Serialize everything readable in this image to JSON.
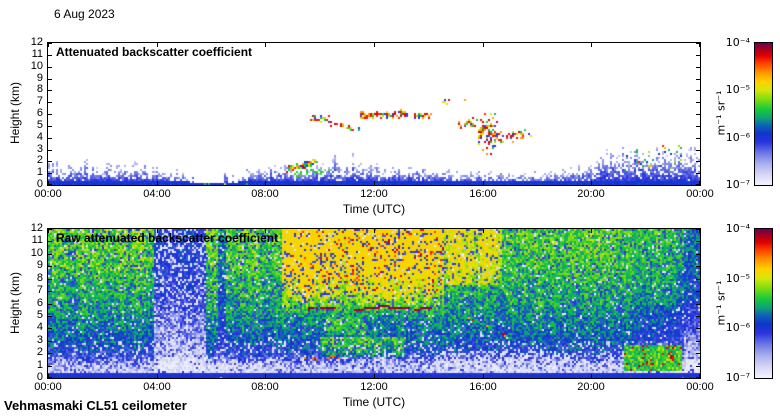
{
  "figure": {
    "date_label": "6 Aug 2023",
    "footer_label": "Vehmasmaki CL51 ceilometer",
    "xlabel": "Time (UTC)",
    "ylabel": "Height (km)",
    "x_tick_labels": [
      "00:00",
      "04:00",
      "08:00",
      "12:00",
      "16:00",
      "20:00",
      "00:00"
    ],
    "y_tick_labels": [
      "0",
      "1",
      "2",
      "3",
      "4",
      "5",
      "6",
      "7",
      "8",
      "9",
      "10",
      "11",
      "12"
    ],
    "colorbar_tick_labels": [
      "10⁻⁴",
      "10⁻⁵",
      "10⁻⁶",
      "10⁻⁷"
    ],
    "colorbar_unit": "m⁻¹ sr⁻¹",
    "colormap_stops": [
      [
        0.0,
        "#f4f4fc"
      ],
      [
        0.07,
        "#d8d8f6"
      ],
      [
        0.15,
        "#a8b0ee"
      ],
      [
        0.23,
        "#6a74e6"
      ],
      [
        0.3,
        "#2a35e0"
      ],
      [
        0.36,
        "#1133cc"
      ],
      [
        0.42,
        "#0d62b8"
      ],
      [
        0.47,
        "#0fa07a"
      ],
      [
        0.53,
        "#16c83c"
      ],
      [
        0.6,
        "#7adc12"
      ],
      [
        0.67,
        "#d8e60a"
      ],
      [
        0.73,
        "#ffd000"
      ],
      [
        0.8,
        "#ff8c00"
      ],
      [
        0.86,
        "#ff3c00"
      ],
      [
        0.91,
        "#e00000"
      ],
      [
        0.96,
        "#a00020"
      ],
      [
        1.0,
        "#6a0050"
      ]
    ]
  },
  "render_seed": 68202306,
  "chart_data": [
    {
      "type": "heatmap",
      "panel": "top",
      "title": "Attenuated backscatter coefficient",
      "x_axis": {
        "label": "Time (UTC)",
        "range_hours": [
          0,
          24
        ],
        "tick_labels": [
          "00:00",
          "04:00",
          "08:00",
          "12:00",
          "16:00",
          "20:00",
          "00:00"
        ]
      },
      "y_axis": {
        "label": "Height (km)",
        "range_km": [
          0,
          12
        ],
        "tick_step_km": 1
      },
      "colorbar": {
        "scale": "log",
        "min": "1e-7",
        "max": "1e-4",
        "unit": "m⁻¹ sr⁻¹",
        "position": "right"
      },
      "render": {
        "style": "sparse",
        "bl_envelope": [
          [
            0,
            1.6
          ],
          [
            2,
            1.5
          ],
          [
            3.5,
            1.45
          ],
          [
            4.3,
            1.15
          ],
          [
            5.0,
            0.9
          ],
          [
            5.25,
            0.3
          ],
          [
            7.0,
            0.3
          ],
          [
            7.35,
            1.25
          ],
          [
            8,
            1.5
          ],
          [
            9,
            1.3
          ],
          [
            10,
            1.45
          ],
          [
            10.7,
            1.8
          ],
          [
            12,
            1.5
          ],
          [
            13,
            1.3
          ],
          [
            14,
            1.2
          ],
          [
            15,
            1.05
          ],
          [
            16,
            1.0
          ],
          [
            17,
            0.9
          ],
          [
            18,
            0.9
          ],
          [
            19,
            1.05
          ],
          [
            20,
            1.6
          ],
          [
            20.6,
            2.3
          ],
          [
            21.5,
            2.45
          ],
          [
            22.5,
            2.5
          ],
          [
            23.3,
            2.45
          ],
          [
            23.7,
            2.6
          ],
          [
            24,
            2.3
          ]
        ],
        "bl_gap": [
          5.25,
          7.0
        ],
        "strip_km": 0.3,
        "cloud_segments": [
          [
            9.6,
            10.35,
            5.55,
            0.3,
            0.75
          ],
          [
            10.4,
            10.95,
            5.15,
            0.25,
            0.45
          ],
          [
            11.0,
            11.5,
            4.8,
            0.25,
            0.5
          ],
          [
            11.55,
            13.25,
            5.95,
            0.33,
            0.85
          ],
          [
            13.5,
            14.1,
            5.85,
            0.3,
            0.8
          ],
          [
            14.5,
            14.78,
            7.1,
            0.28,
            0.4
          ],
          [
            15.22,
            15.42,
            7.2,
            0.25,
            0.4
          ],
          [
            15.1,
            15.9,
            5.2,
            0.45,
            0.28
          ],
          [
            15.85,
            16.5,
            4.4,
            1.5,
            0.5
          ],
          [
            16.45,
            17.15,
            4.05,
            0.6,
            0.5
          ],
          [
            17.1,
            17.75,
            4.25,
            0.4,
            0.5
          ]
        ],
        "morning_streak": [
          [
            8.8,
            1.35
          ],
          [
            9.9,
            1.95
          ]
        ],
        "green_line": [
          [
            9.0,
            1.0
          ],
          [
            10.35,
            1.05
          ]
        ],
        "evening_specks": [
          21.2,
          23.4
        ],
        "gap_bottom_dots": [
          5.2,
          7.6
        ]
      }
    },
    {
      "type": "heatmap",
      "panel": "bottom",
      "title": "Raw attenuated backscatter coefficient",
      "x_axis": {
        "label": "Time (UTC)",
        "range_hours": [
          0,
          24
        ],
        "tick_labels": [
          "00:00",
          "04:00",
          "08:00",
          "12:00",
          "16:00",
          "20:00",
          "00:00"
        ]
      },
      "y_axis": {
        "label": "Height (km)",
        "range_km": [
          0,
          12
        ],
        "tick_step_km": 1
      },
      "colorbar": {
        "scale": "log",
        "min": "1e-7",
        "max": "1e-4",
        "unit": "m⁻¹ sr⁻¹",
        "position": "right"
      },
      "render": {
        "style": "dense",
        "profile": [
          [
            0,
            0.34
          ],
          [
            0.45,
            0.31
          ],
          [
            0.55,
            0.12
          ],
          [
            1.0,
            0.16
          ],
          [
            1.6,
            0.26
          ],
          [
            2,
            0.33
          ],
          [
            3,
            0.4
          ],
          [
            4,
            0.44
          ],
          [
            5,
            0.47
          ],
          [
            6,
            0.5
          ],
          [
            8,
            0.53
          ],
          [
            9,
            0.55
          ],
          [
            12,
            0.57
          ]
        ],
        "weak_band": [
          3.9,
          5.85
        ],
        "thin_weak_col": [
          6.28,
          6.52
        ],
        "plume_main": [
          8.6,
          14.6
        ],
        "plume_mid": [
          10.2,
          11.7
        ],
        "plume_late": [
          14.5,
          16.7
        ],
        "early_yellow": [
          0.3,
          3.85
        ],
        "green_patch": [
          10.0,
          13.2,
          1.8,
          3.3
        ],
        "evening_fade_start": 20.5,
        "cloud_lines": [
          {
            "pts": [
              [
                9.6,
                5.6
              ],
              [
                10.6,
                5.62
              ]
            ],
            "w": 0.16,
            "p": 0.8
          },
          {
            "pts": [
              [
                11.3,
                5.5
              ],
              [
                12.3,
                5.8
              ],
              [
                13.3,
                5.62
              ]
            ],
            "w": 0.18,
            "p": 0.85
          },
          {
            "pts": [
              [
                13.5,
                5.58
              ],
              [
                14.15,
                5.65
              ]
            ],
            "w": 0.16,
            "p": 0.8
          }
        ],
        "descent_line": {
          "pts": [
            [
              15.35,
              5.0
            ],
            [
              16.2,
              4.2
            ],
            [
              17.0,
              3.35
            ]
          ],
          "w": 0.22,
          "p": 0.4
        },
        "low_squiggle": [
          9.4,
          11.0,
          1.6,
          0.25,
          0.9
        ],
        "bottom_dots": [
          [
            5.2,
            8.6
          ],
          [
            21.0,
            23.4
          ]
        ],
        "evening_feature": [
          21.2,
          23.35,
          0.7,
          2.7
        ]
      }
    }
  ]
}
